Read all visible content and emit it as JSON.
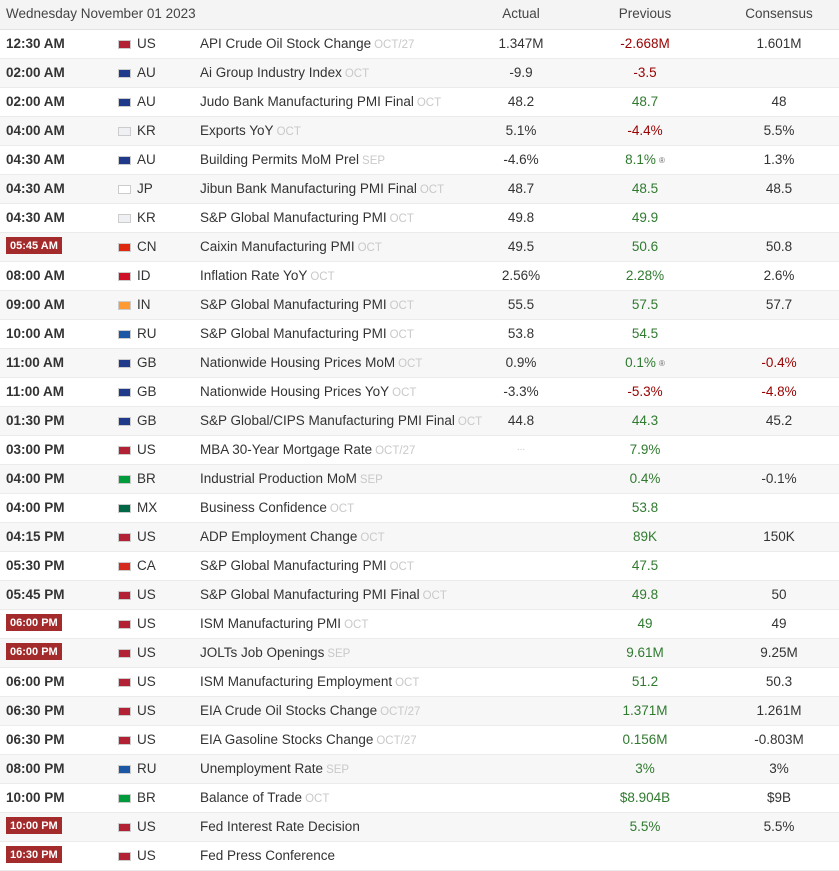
{
  "header": {
    "date": "Wednesday November 01 2023",
    "actual": "Actual",
    "previous": "Previous",
    "consensus": "Consensus"
  },
  "flag_colors": {
    "US": "#b22234",
    "AU": "#1f3a8a",
    "KR": "#eef0f4",
    "JP": "#ffffff",
    "CN": "#de2910",
    "ID": "#ce1126",
    "IN": "#ff9933",
    "RU": "#1c57a5",
    "GB": "#1f3a8a",
    "BR": "#009c3b",
    "MX": "#006847",
    "CA": "#d52b1e"
  },
  "events": [
    {
      "time": "12:30 AM",
      "live": false,
      "country": "US",
      "event": "API Crude Oil Stock Change",
      "ref": "OCT/27",
      "actual": "1.347M",
      "previous": "-2.668M",
      "prev_tone": "neg",
      "prev_revised": false,
      "consensus": "1.601M",
      "cons_tone": "neu"
    },
    {
      "time": "02:00 AM",
      "live": false,
      "country": "AU",
      "event": "Ai Group Industry Index",
      "ref": "OCT",
      "actual": "-9.9",
      "previous": "-3.5",
      "prev_tone": "neg",
      "prev_revised": false,
      "consensus": "",
      "cons_tone": "neu"
    },
    {
      "time": "02:00 AM",
      "live": false,
      "country": "AU",
      "event": "Judo Bank Manufacturing PMI Final",
      "ref": "OCT",
      "actual": "48.2",
      "previous": "48.7",
      "prev_tone": "pos",
      "prev_revised": false,
      "consensus": "48",
      "cons_tone": "neu"
    },
    {
      "time": "04:00 AM",
      "live": false,
      "country": "KR",
      "event": "Exports YoY",
      "ref": "OCT",
      "actual": "5.1%",
      "previous": "-4.4%",
      "prev_tone": "neg",
      "prev_revised": false,
      "consensus": "5.5%",
      "cons_tone": "neu"
    },
    {
      "time": "04:30 AM",
      "live": false,
      "country": "AU",
      "event": "Building Permits MoM Prel",
      "ref": "SEP",
      "actual": "-4.6%",
      "previous": "8.1%",
      "prev_tone": "pos",
      "prev_revised": true,
      "consensus": "1.3%",
      "cons_tone": "neu"
    },
    {
      "time": "04:30 AM",
      "live": false,
      "country": "JP",
      "event": "Jibun Bank Manufacturing PMI Final",
      "ref": "OCT",
      "actual": "48.7",
      "previous": "48.5",
      "prev_tone": "pos",
      "prev_revised": false,
      "consensus": "48.5",
      "cons_tone": "neu"
    },
    {
      "time": "04:30 AM",
      "live": false,
      "country": "KR",
      "event": "S&P Global Manufacturing PMI",
      "ref": "OCT",
      "actual": "49.8",
      "previous": "49.9",
      "prev_tone": "pos",
      "prev_revised": false,
      "consensus": "",
      "cons_tone": "neu"
    },
    {
      "time": "05:45 AM",
      "live": true,
      "country": "CN",
      "event": "Caixin Manufacturing PMI",
      "ref": "OCT",
      "actual": "49.5",
      "previous": "50.6",
      "prev_tone": "pos",
      "prev_revised": false,
      "consensus": "50.8",
      "cons_tone": "neu"
    },
    {
      "time": "08:00 AM",
      "live": false,
      "country": "ID",
      "event": "Inflation Rate YoY",
      "ref": "OCT",
      "actual": "2.56%",
      "previous": "2.28%",
      "prev_tone": "pos",
      "prev_revised": false,
      "consensus": "2.6%",
      "cons_tone": "neu"
    },
    {
      "time": "09:00 AM",
      "live": false,
      "country": "IN",
      "event": "S&P Global Manufacturing PMI",
      "ref": "OCT",
      "actual": "55.5",
      "previous": "57.5",
      "prev_tone": "pos",
      "prev_revised": false,
      "consensus": "57.7",
      "cons_tone": "neu"
    },
    {
      "time": "10:00 AM",
      "live": false,
      "country": "RU",
      "event": "S&P Global Manufacturing PMI",
      "ref": "OCT",
      "actual": "53.8",
      "previous": "54.5",
      "prev_tone": "pos",
      "prev_revised": false,
      "consensus": "",
      "cons_tone": "neu"
    },
    {
      "time": "11:00 AM",
      "live": false,
      "country": "GB",
      "event": "Nationwide Housing Prices MoM",
      "ref": "OCT",
      "actual": "0.9%",
      "previous": "0.1%",
      "prev_tone": "pos",
      "prev_revised": true,
      "consensus": "-0.4%",
      "cons_tone": "neg"
    },
    {
      "time": "11:00 AM",
      "live": false,
      "country": "GB",
      "event": "Nationwide Housing Prices YoY",
      "ref": "OCT",
      "actual": "-3.3%",
      "previous": "-5.3%",
      "prev_tone": "neg",
      "prev_revised": false,
      "consensus": "-4.8%",
      "cons_tone": "neg"
    },
    {
      "time": "01:30 PM",
      "live": false,
      "country": "GB",
      "event": "S&P Global/CIPS Manufacturing PMI Final",
      "ref": "OCT",
      "actual": "44.8",
      "previous": "44.3",
      "prev_tone": "pos",
      "prev_revised": false,
      "consensus": "45.2",
      "cons_tone": "neu"
    },
    {
      "time": "03:00 PM",
      "live": false,
      "country": "US",
      "event": "MBA 30-Year Mortgage Rate",
      "ref": "OCT/27",
      "actual": "...",
      "actual_dim": true,
      "previous": "7.9%",
      "prev_tone": "pos",
      "prev_revised": false,
      "consensus": "",
      "cons_tone": "neu"
    },
    {
      "time": "04:00 PM",
      "live": false,
      "country": "BR",
      "event": "Industrial Production MoM",
      "ref": "SEP",
      "actual": "",
      "previous": "0.4%",
      "prev_tone": "pos",
      "prev_revised": false,
      "consensus": "-0.1%",
      "cons_tone": "neu"
    },
    {
      "time": "04:00 PM",
      "live": false,
      "country": "MX",
      "event": "Business Confidence",
      "ref": "OCT",
      "actual": "",
      "previous": "53.8",
      "prev_tone": "pos",
      "prev_revised": false,
      "consensus": "",
      "cons_tone": "neu"
    },
    {
      "time": "04:15 PM",
      "live": false,
      "country": "US",
      "event": "ADP Employment Change",
      "ref": "OCT",
      "actual": "",
      "previous": "89K",
      "prev_tone": "pos",
      "prev_revised": false,
      "consensus": "150K",
      "cons_tone": "neu"
    },
    {
      "time": "05:30 PM",
      "live": false,
      "country": "CA",
      "event": "S&P Global Manufacturing PMI",
      "ref": "OCT",
      "actual": "",
      "previous": "47.5",
      "prev_tone": "pos",
      "prev_revised": false,
      "consensus": "",
      "cons_tone": "neu"
    },
    {
      "time": "05:45 PM",
      "live": false,
      "country": "US",
      "event": "S&P Global Manufacturing PMI Final",
      "ref": "OCT",
      "actual": "",
      "previous": "49.8",
      "prev_tone": "pos",
      "prev_revised": false,
      "consensus": "50",
      "cons_tone": "neu"
    },
    {
      "time": "06:00 PM",
      "live": true,
      "country": "US",
      "event": "ISM Manufacturing PMI",
      "ref": "OCT",
      "actual": "",
      "previous": "49",
      "prev_tone": "pos",
      "prev_revised": false,
      "consensus": "49",
      "cons_tone": "neu"
    },
    {
      "time": "06:00 PM",
      "live": true,
      "country": "US",
      "event": "JOLTs Job Openings",
      "ref": "SEP",
      "actual": "",
      "previous": "9.61M",
      "prev_tone": "pos",
      "prev_revised": false,
      "consensus": "9.25M",
      "cons_tone": "neu"
    },
    {
      "time": "06:00 PM",
      "live": false,
      "country": "US",
      "event": "ISM Manufacturing Employment",
      "ref": "OCT",
      "actual": "",
      "previous": "51.2",
      "prev_tone": "pos",
      "prev_revised": false,
      "consensus": "50.3",
      "cons_tone": "neu"
    },
    {
      "time": "06:30 PM",
      "live": false,
      "country": "US",
      "event": "EIA Crude Oil Stocks Change",
      "ref": "OCT/27",
      "actual": "",
      "previous": "1.371M",
      "prev_tone": "pos",
      "prev_revised": false,
      "consensus": "1.261M",
      "cons_tone": "neu"
    },
    {
      "time": "06:30 PM",
      "live": false,
      "country": "US",
      "event": "EIA Gasoline Stocks Change",
      "ref": "OCT/27",
      "actual": "",
      "previous": "0.156M",
      "prev_tone": "pos",
      "prev_revised": false,
      "consensus": "-0.803M",
      "cons_tone": "neu"
    },
    {
      "time": "08:00 PM",
      "live": false,
      "country": "RU",
      "event": "Unemployment Rate",
      "ref": "SEP",
      "actual": "",
      "previous": "3%",
      "prev_tone": "pos",
      "prev_revised": false,
      "consensus": "3%",
      "cons_tone": "neu"
    },
    {
      "time": "10:00 PM",
      "live": false,
      "country": "BR",
      "event": "Balance of Trade",
      "ref": "OCT",
      "actual": "",
      "previous": "$8.904B",
      "prev_tone": "pos",
      "prev_revised": false,
      "consensus": "$9B",
      "cons_tone": "neu"
    },
    {
      "time": "10:00 PM",
      "live": true,
      "country": "US",
      "event": "Fed Interest Rate Decision",
      "ref": "",
      "actual": "",
      "previous": "5.5%",
      "prev_tone": "pos",
      "prev_revised": false,
      "consensus": "5.5%",
      "cons_tone": "neu"
    },
    {
      "time": "10:30 PM",
      "live": true,
      "country": "US",
      "event": "Fed Press Conference",
      "ref": "",
      "actual": "",
      "previous": "",
      "prev_tone": "pos",
      "prev_revised": false,
      "consensus": "",
      "cons_tone": "neu"
    }
  ]
}
